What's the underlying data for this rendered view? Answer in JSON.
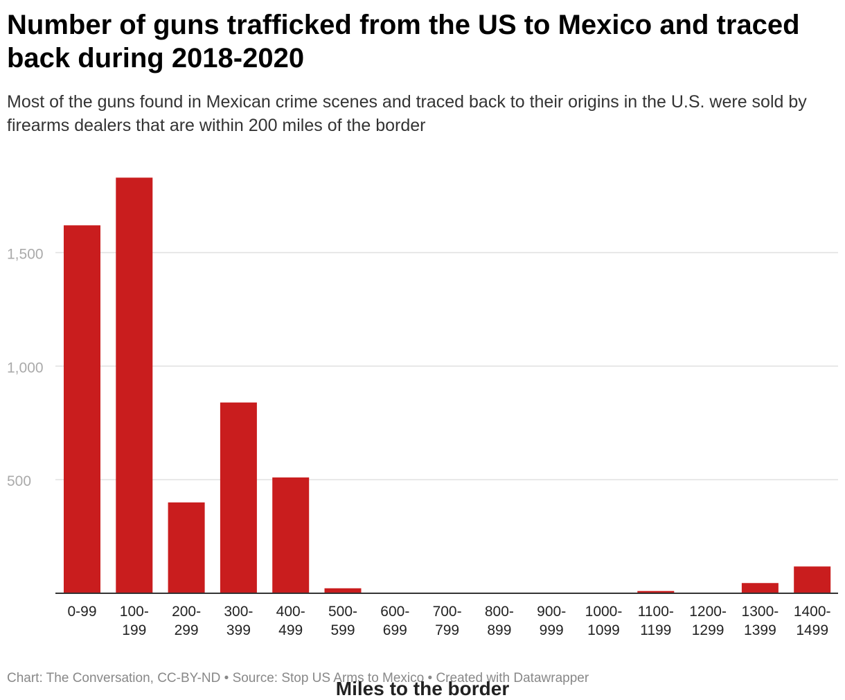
{
  "title": "Number of guns trafficked from the US to Mexico and traced back during 2018-2020",
  "subtitle": "Most of the guns found in Mexican crime scenes and traced back to their origins in the U.S. were sold by firearms dealers that are within 200 miles of the border",
  "footer": {
    "credit": "Chart: The Conversation, CC-BY-ND",
    "separator": "•",
    "source": "Source: Stop US Arms to Mexico",
    "tool": "Created with Datawrapper"
  },
  "colors": {
    "bar": "#c91d1e",
    "grid": "#e0e0e0",
    "axis": "#333333",
    "tick": "#aaaaaa"
  },
  "chart_data": {
    "type": "bar",
    "title": "Number of guns trafficked from the US to Mexico and traced back during 2018-2020",
    "xlabel": "Miles to the border",
    "ylabel": "",
    "ylim": [
      0,
      1850
    ],
    "yticks": [
      500,
      1000,
      1500
    ],
    "ytick_labels": [
      "500",
      "1,000",
      "1,500"
    ],
    "grid": true,
    "categories": [
      "0-99",
      "100-199",
      "200-299",
      "300-399",
      "400-499",
      "500-599",
      "600-699",
      "700-799",
      "800-899",
      "900-999",
      "1000-1099",
      "1100-1199",
      "1200-1299",
      "1300-1399",
      "1400-1499"
    ],
    "category_lines": [
      [
        "0-99"
      ],
      [
        "100-",
        "199"
      ],
      [
        "200-",
        "299"
      ],
      [
        "300-",
        "399"
      ],
      [
        "400-",
        "499"
      ],
      [
        "500-",
        "599"
      ],
      [
        "600-",
        "699"
      ],
      [
        "700-",
        "799"
      ],
      [
        "800-",
        "899"
      ],
      [
        "900-",
        "999"
      ],
      [
        "1000-",
        "1099"
      ],
      [
        "1100-",
        "1199"
      ],
      [
        "1200-",
        "1299"
      ],
      [
        "1300-",
        "1399"
      ],
      [
        "1400-",
        "1499"
      ]
    ],
    "values": [
      1620,
      1830,
      400,
      840,
      510,
      22,
      0,
      0,
      0,
      0,
      0,
      10,
      0,
      45,
      118
    ]
  }
}
